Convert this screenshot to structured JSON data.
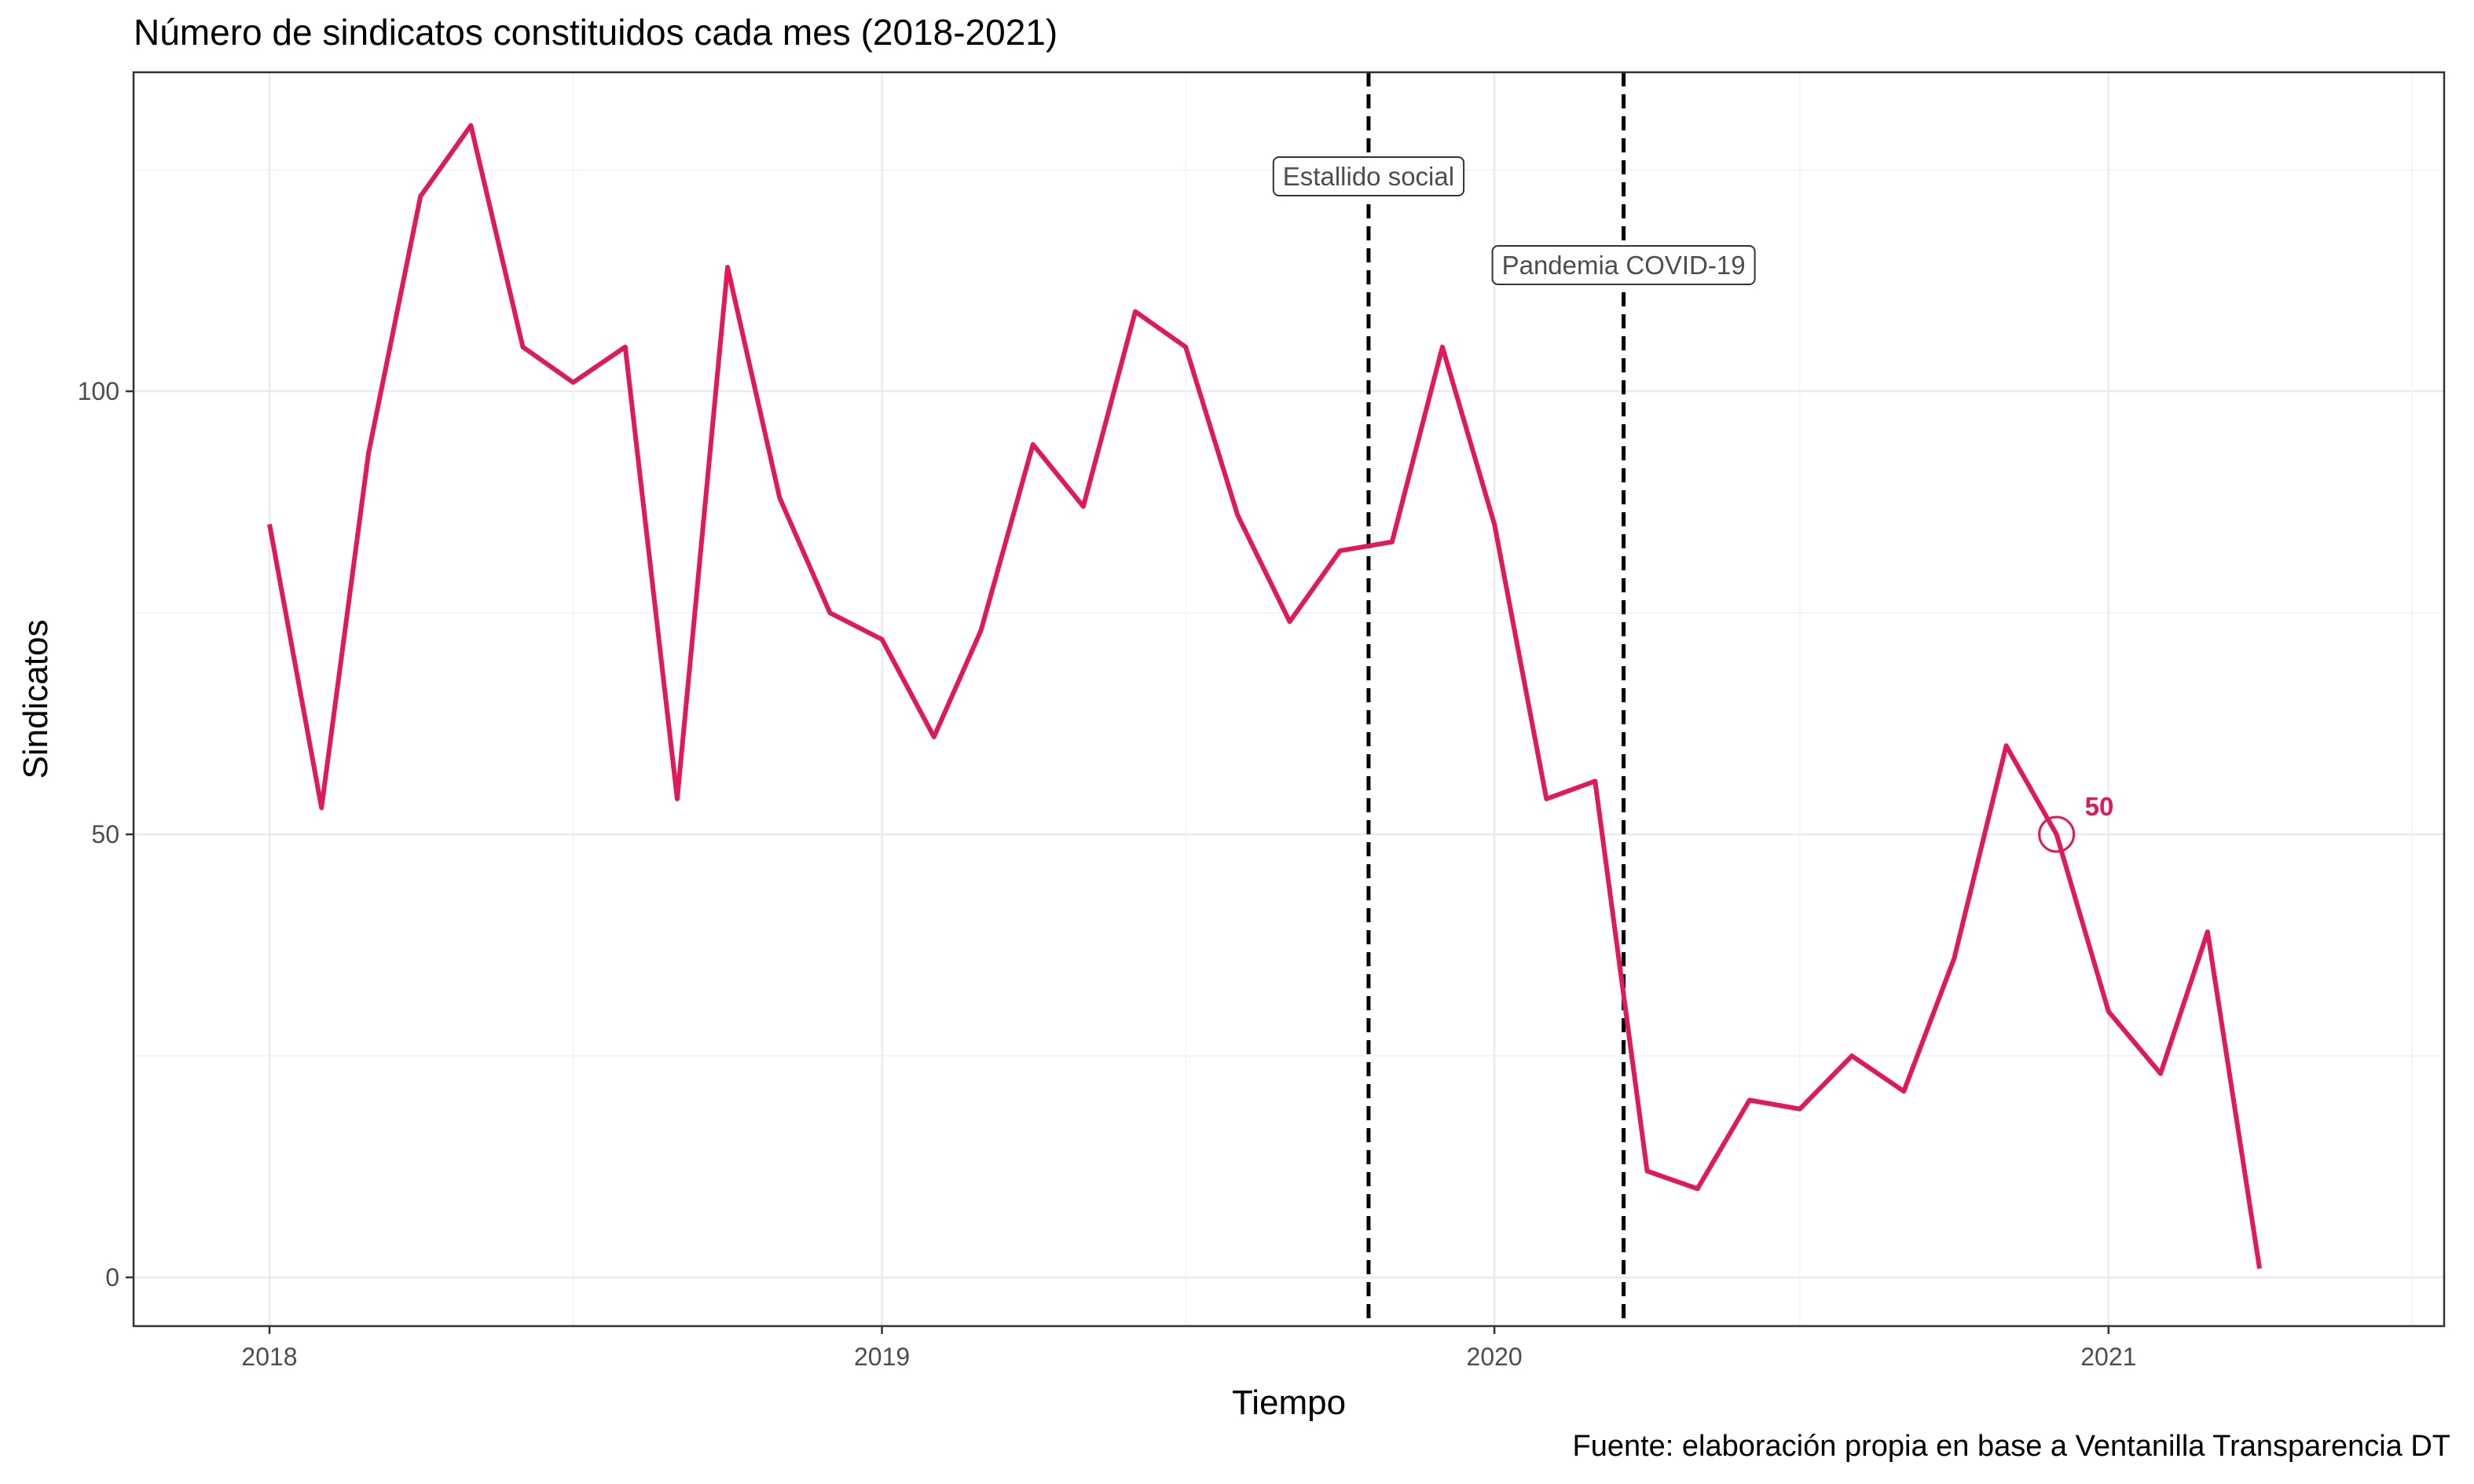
{
  "chart_data": {
    "type": "line",
    "title": "Número de sindicatos constituidos cada mes (2018-2021)",
    "xlabel": "Tiempo",
    "ylabel": "Sindicatos",
    "caption": "Fuente: elaboración propia en base a Ventanilla Transparencia DT",
    "x_ticks": [
      "2018",
      "2019",
      "2020",
      "2021"
    ],
    "y_ticks": [
      0,
      50,
      100
    ],
    "ylim": [
      -5.5,
      136
    ],
    "xlim": [
      "2017-10-12",
      "2021-07-20"
    ],
    "grid": true,
    "series": [
      {
        "color": "#E0185C",
        "x": [
          "2018-01",
          "2018-02",
          "2018-03",
          "2018-04",
          "2018-05",
          "2018-06",
          "2018-07",
          "2018-08",
          "2018-09",
          "2018-10",
          "2018-11",
          "2018-12",
          "2019-01",
          "2019-02",
          "2019-03",
          "2019-04",
          "2019-05",
          "2019-06",
          "2019-07",
          "2019-08",
          "2019-09",
          "2019-10",
          "2019-11",
          "2019-12",
          "2020-01",
          "2020-02",
          "2020-03",
          "2020-04",
          "2020-05",
          "2020-06",
          "2020-07",
          "2020-08",
          "2020-09",
          "2020-10",
          "2020-11",
          "2020-12",
          "2021-01",
          "2021-02",
          "2021-03",
          "2021-04"
        ],
        "values": [
          85,
          53,
          93,
          122,
          130,
          105,
          101,
          105,
          54,
          114,
          88,
          75,
          72,
          61,
          73,
          94,
          87,
          109,
          105,
          86,
          74,
          82,
          83,
          105,
          85,
          54,
          56,
          12,
          10,
          20,
          19,
          25,
          21,
          36,
          60,
          50,
          30,
          23,
          39,
          1
        ]
      }
    ],
    "vlines": [
      {
        "x": "2019-10-18",
        "label": "Estallido social"
      },
      {
        "x": "2020-03-18",
        "label": "Pandemia COVID-19"
      }
    ],
    "highlight": {
      "x": "2020-12",
      "value": 50,
      "label": "50"
    }
  }
}
